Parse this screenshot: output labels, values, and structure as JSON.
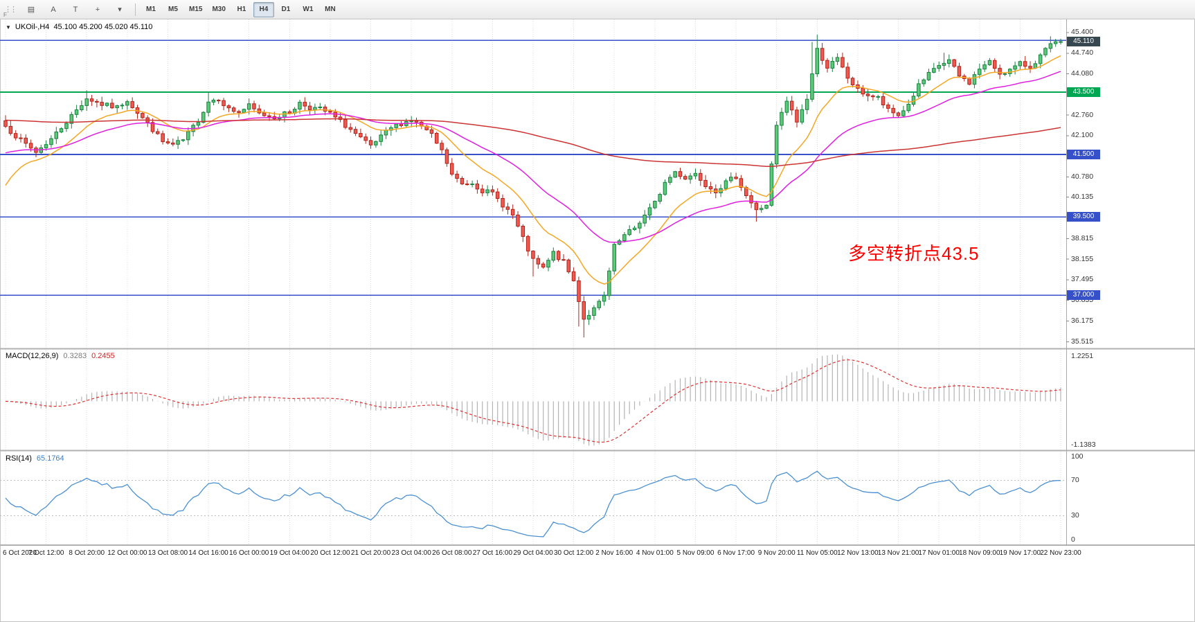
{
  "toolbar": {
    "left_icons": [
      {
        "name": "charts-tile-icon",
        "glyph": "▤",
        "interactable": true
      },
      {
        "name": "cursor-tool-button",
        "glyph": "A",
        "interactable": true
      },
      {
        "name": "text-tool-button",
        "glyph": "T",
        "interactable": true
      },
      {
        "name": "crosshair-tool-button",
        "glyph": "+",
        "interactable": true
      },
      {
        "name": "tool-dropdown-caret-icon",
        "glyph": "▾",
        "interactable": true
      }
    ],
    "timeframes": [
      "M1",
      "M5",
      "M15",
      "M30",
      "H1",
      "H4",
      "D1",
      "W1",
      "MN"
    ],
    "active_timeframe": "H4",
    "corner_label": "F"
  },
  "chart": {
    "symbol_label": "UKOil-,H4",
    "ohlc": "45.100 45.200 45.020 45.110",
    "annotation": {
      "text": "多空转折点43.5",
      "color": "#ff0000"
    },
    "scale": {
      "pmax": 45.82,
      "pmin": 35.3
    },
    "price_axis": {
      "ticks": [
        "45.400",
        "44.740",
        "44.080",
        "42.760",
        "42.100",
        "40.780",
        "40.135",
        "38.815",
        "38.155",
        "37.495",
        "36.835",
        "36.175",
        "35.515"
      ],
      "badges": [
        {
          "text": "45.110",
          "price": 45.11,
          "bg": "#37474f"
        },
        {
          "text": "43.500",
          "price": 43.5,
          "bg": "#00a651"
        },
        {
          "text": "41.500",
          "price": 41.5,
          "bg": "#3550c8"
        },
        {
          "text": "39.500",
          "price": 39.5,
          "bg": "#3550c8"
        },
        {
          "text": "37.000",
          "price": 37.0,
          "bg": "#3550c8"
        }
      ]
    },
    "hlines": [
      {
        "price": 45.15,
        "color": "#3550c8",
        "width": 1.6
      },
      {
        "price": 43.5,
        "color": "#00a651",
        "width": 2
      },
      {
        "price": 41.5,
        "color": "#3550c8",
        "width": 2
      },
      {
        "price": 39.5,
        "color": "#3550c8",
        "width": 1.6
      },
      {
        "price": 37.0,
        "color": "#3550c8",
        "width": 1.6
      }
    ]
  },
  "macd": {
    "label": "MACD(12,26,9)",
    "values": [
      "0.3283",
      "0.2455"
    ],
    "axis_max": "1.2251",
    "axis_min": "-1.1383"
  },
  "rsi": {
    "label": "RSI(14)",
    "value": "65.1764",
    "axis": [
      "100",
      "70",
      "30",
      "0"
    ],
    "levels": [
      70,
      30
    ]
  },
  "time_axis": [
    "6 Oct 2020",
    "7 Oct 12:00",
    "8 Oct 20:00",
    "12 Oct 00:00",
    "13 Oct 08:00",
    "14 Oct 16:00",
    "16 Oct 00:00",
    "19 Oct 04:00",
    "20 Oct 12:00",
    "21 Oct 20:00",
    "23 Oct 04:00",
    "26 Oct 08:00",
    "27 Oct 16:00",
    "29 Oct 04:00",
    "30 Oct 12:00",
    "2 Nov 16:00",
    "4 Nov 01:00",
    "5 Nov 09:00",
    "6 Nov 17:00",
    "9 Nov 20:00",
    "11 Nov 05:00",
    "12 Nov 13:00",
    "13 Nov 21:00",
    "17 Nov 01:00",
    "18 Nov 09:00",
    "19 Nov 17:00",
    "22 Nov 23:00"
  ],
  "chart_data": {
    "type": "candlestick+indicators",
    "symbol": "UKOil-",
    "timeframe": "H4",
    "bars": 209,
    "bars_per_time_label": 8,
    "price_range_visible": [
      35.515,
      45.4
    ],
    "noise": 0.16,
    "seed": 7,
    "anchors": [
      [
        0,
        42.4
      ],
      [
        3,
        41.95
      ],
      [
        6,
        41.58
      ],
      [
        9,
        42.0
      ],
      [
        12,
        42.55
      ],
      [
        16,
        43.3
      ],
      [
        19,
        43.1
      ],
      [
        22,
        43.0
      ],
      [
        24,
        43.25
      ],
      [
        26,
        42.85
      ],
      [
        29,
        42.3
      ],
      [
        31,
        41.9
      ],
      [
        33,
        41.8
      ],
      [
        35,
        41.95
      ],
      [
        38,
        42.6
      ],
      [
        40,
        43.2
      ],
      [
        42,
        43.3
      ],
      [
        44,
        42.95
      ],
      [
        46,
        42.85
      ],
      [
        48,
        43.05
      ],
      [
        50,
        42.8
      ],
      [
        53,
        42.7
      ],
      [
        56,
        42.85
      ],
      [
        58,
        43.15
      ],
      [
        60,
        43.0
      ],
      [
        62,
        42.95
      ],
      [
        64,
        42.8
      ],
      [
        66,
        42.55
      ],
      [
        68,
        42.3
      ],
      [
        70,
        42.0
      ],
      [
        72,
        41.75
      ],
      [
        74,
        42.05
      ],
      [
        76,
        42.35
      ],
      [
        78,
        42.5
      ],
      [
        80,
        42.6
      ],
      [
        82,
        42.4
      ],
      [
        84,
        42.1
      ],
      [
        86,
        41.6
      ],
      [
        88,
        40.85
      ],
      [
        90,
        40.55
      ],
      [
        92,
        40.6
      ],
      [
        94,
        40.35
      ],
      [
        96,
        40.25
      ],
      [
        98,
        39.9
      ],
      [
        100,
        39.55
      ],
      [
        102,
        38.8
      ],
      [
        104,
        38.1
      ],
      [
        106,
        37.85
      ],
      [
        108,
        38.35
      ],
      [
        110,
        38.05
      ],
      [
        112,
        37.45
      ],
      [
        114,
        36.25
      ],
      [
        116,
        36.55
      ],
      [
        118,
        36.95
      ],
      [
        120,
        38.55
      ],
      [
        122,
        38.9
      ],
      [
        124,
        39.15
      ],
      [
        126,
        39.55
      ],
      [
        128,
        39.95
      ],
      [
        130,
        40.6
      ],
      [
        132,
        40.95
      ],
      [
        134,
        40.75
      ],
      [
        136,
        40.9
      ],
      [
        138,
        40.55
      ],
      [
        140,
        40.35
      ],
      [
        142,
        40.6
      ],
      [
        144,
        40.8
      ],
      [
        146,
        40.2
      ],
      [
        148,
        39.7
      ],
      [
        150,
        39.9
      ],
      [
        152,
        42.4
      ],
      [
        154,
        43.2
      ],
      [
        156,
        42.55
      ],
      [
        158,
        43.3
      ],
      [
        160,
        44.85
      ],
      [
        162,
        44.3
      ],
      [
        164,
        44.55
      ],
      [
        166,
        43.95
      ],
      [
        168,
        43.55
      ],
      [
        170,
        43.4
      ],
      [
        172,
        43.3
      ],
      [
        174,
        42.9
      ],
      [
        176,
        42.75
      ],
      [
        178,
        43.1
      ],
      [
        180,
        43.7
      ],
      [
        182,
        44.05
      ],
      [
        184,
        44.35
      ],
      [
        186,
        44.5
      ],
      [
        188,
        44.0
      ],
      [
        190,
        43.8
      ],
      [
        192,
        44.25
      ],
      [
        194,
        44.45
      ],
      [
        196,
        44.1
      ],
      [
        198,
        44.2
      ],
      [
        200,
        44.4
      ],
      [
        202,
        44.3
      ],
      [
        204,
        44.65
      ],
      [
        206,
        45.0
      ],
      [
        208,
        45.11
      ]
    ],
    "overrides": {
      "16": {
        "h": 43.55
      },
      "40": {
        "h": 43.5
      },
      "58": {
        "h": 43.25
      },
      "104": {
        "l": 37.6
      },
      "113": {
        "l": 36.0
      },
      "114": {
        "l": 35.65
      },
      "115": {
        "l": 36.05
      },
      "148": {
        "l": 39.35
      },
      "159": {
        "h": 45.1
      },
      "160": {
        "h": 45.33
      },
      "185": {
        "h": 44.75
      },
      "206": {
        "h": 45.28
      },
      "208": {
        "o": 45.1,
        "h": 45.2,
        "l": 45.02,
        "c": 45.11
      }
    },
    "moving_averages": [
      {
        "name": "ma-fast",
        "period": 13,
        "seed": 40.2,
        "color": "#f5a623"
      },
      {
        "name": "ma-mid",
        "period": 34,
        "seed": 41.5,
        "color": "#e020e0"
      },
      {
        "name": "ma-slow",
        "period": 200,
        "seed": 42.6,
        "color": "#cc3333"
      }
    ],
    "macd_params": {
      "fast": 12,
      "slow": 26,
      "signal": 9,
      "current": 0.3283,
      "current_signal": 0.2455,
      "visible_max": 1.2251,
      "visible_min": -1.1383
    },
    "rsi_params": {
      "period": 14,
      "current": 65.1764
    },
    "colors": {
      "bull_fill": "#5cc878",
      "bull_stroke": "#17803f",
      "bear_fill": "#ee5a52",
      "bear_stroke": "#b02318",
      "histogram": "#b4b4b4",
      "signal": "#e03131",
      "rsi_line": "#4a90d2",
      "grid": "#dcdcdc",
      "divider": "#b0b0b0"
    }
  }
}
